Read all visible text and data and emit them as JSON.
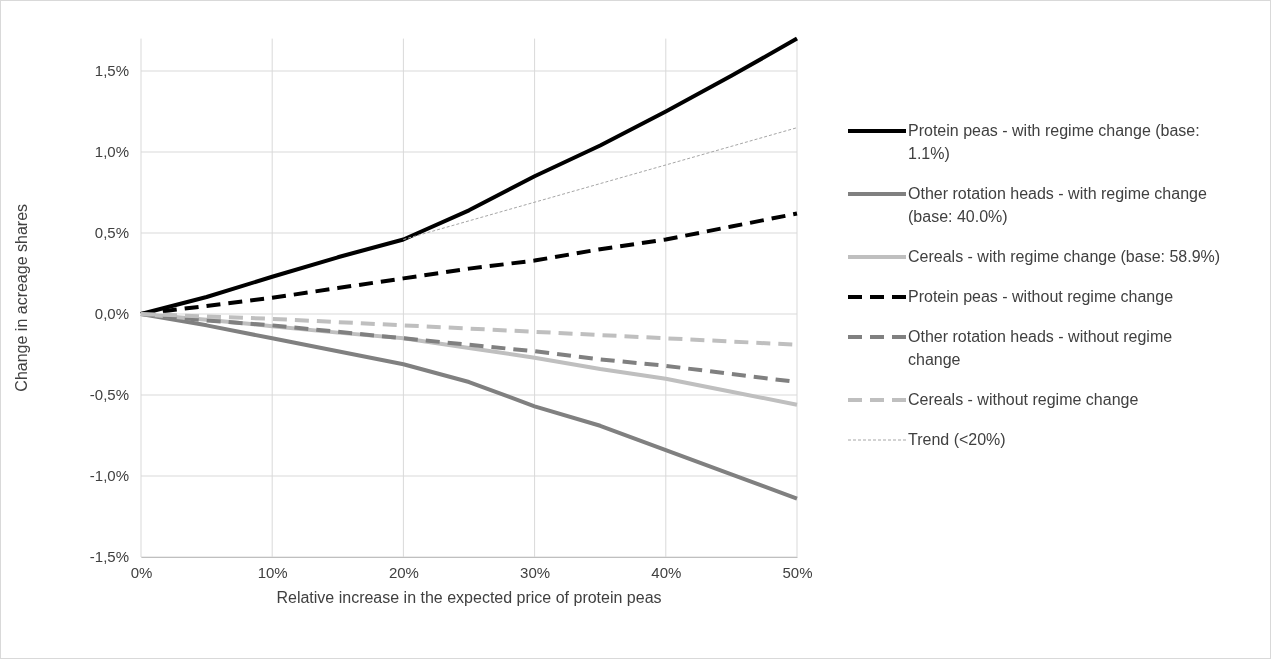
{
  "chart_data": {
    "type": "line",
    "xlabel": "Relative increase in the expected price of protein peas",
    "ylabel": "Change in acreage shares",
    "x": [
      0,
      5,
      10,
      15,
      20,
      25,
      30,
      35,
      40,
      45,
      50
    ],
    "xlim": [
      0,
      50
    ],
    "xticks": [
      {
        "value": 0,
        "label": "0%"
      },
      {
        "value": 10,
        "label": "10%"
      },
      {
        "value": 20,
        "label": "20%"
      },
      {
        "value": 30,
        "label": "30%"
      },
      {
        "value": 40,
        "label": "40%"
      },
      {
        "value": 50,
        "label": "50%"
      }
    ],
    "ylim": [
      -1.5,
      1.7
    ],
    "yticks": [
      {
        "value": -1.5,
        "label": "-1,5%"
      },
      {
        "value": -1,
        "label": "-1,0%"
      },
      {
        "value": -0.5,
        "label": "-0,5%"
      },
      {
        "value": 0,
        "label": "0,0%"
      },
      {
        "value": 0.5,
        "label": "0,5%"
      },
      {
        "value": 1,
        "label": "1,0%"
      },
      {
        "value": 1.5,
        "label": "1,5%"
      }
    ],
    "grid": true,
    "legend": "right",
    "series": [
      {
        "name": "Protein peas - with regime change (base: 1.1%)",
        "color": "#000000",
        "line_style": "solid",
        "values": [
          0,
          0.105,
          0.23,
          0.35,
          0.46,
          0.64,
          0.85,
          1.04,
          1.25,
          1.47,
          1.7
        ]
      },
      {
        "name": "Other rotation heads - with regime change (base: 40.0%)",
        "color": "#808080",
        "line_style": "solid",
        "values": [
          0,
          -0.07,
          -0.15,
          -0.23,
          -0.31,
          -0.42,
          -0.57,
          -0.69,
          -0.84,
          -0.99,
          -1.14
        ]
      },
      {
        "name": "Cereals - with regime change (base: 58.9%)",
        "color": "#bfbfbf",
        "line_style": "solid",
        "values": [
          0,
          -0.035,
          -0.075,
          -0.115,
          -0.15,
          -0.21,
          -0.27,
          -0.34,
          -0.4,
          -0.48,
          -0.56
        ]
      },
      {
        "name": "Protein peas - without regime change",
        "color": "#000000",
        "line_style": "dashed",
        "values": [
          0,
          0.05,
          0.1,
          0.16,
          0.22,
          0.28,
          0.33,
          0.4,
          0.46,
          0.54,
          0.62
        ]
      },
      {
        "name": "Other rotation heads - without regime change",
        "color": "#808080",
        "line_style": "dashed",
        "values": [
          0,
          -0.04,
          -0.07,
          -0.11,
          -0.15,
          -0.19,
          -0.23,
          -0.28,
          -0.32,
          -0.37,
          -0.42
        ]
      },
      {
        "name": "Cereals - without regime change",
        "color": "#bfbfbf",
        "line_style": "dashed",
        "values": [
          0,
          -0.015,
          -0.03,
          -0.05,
          -0.07,
          -0.09,
          -0.11,
          -0.13,
          -0.15,
          -0.17,
          -0.19
        ]
      },
      {
        "name": "Trend (<20%)",
        "color": "#a6a6a6",
        "line_style": "dotted",
        "x": [
          20,
          50
        ],
        "values": [
          0.46,
          1.15
        ]
      }
    ]
  }
}
